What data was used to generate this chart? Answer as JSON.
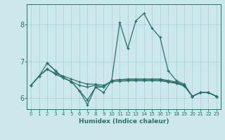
{
  "xlabel": "Humidex (Indice chaleur)",
  "xlim": [
    -0.5,
    23.5
  ],
  "ylim": [
    5.7,
    8.55
  ],
  "yticks": [
    6,
    7,
    8
  ],
  "xticks": [
    0,
    1,
    2,
    3,
    4,
    5,
    6,
    7,
    8,
    9,
    10,
    11,
    12,
    13,
    14,
    15,
    16,
    17,
    18,
    19,
    20,
    21,
    22,
    23
  ],
  "bg_color": "#cce8ec",
  "grid_color": "#aacdd4",
  "line_color": "#2a7068",
  "lines": [
    {
      "x": [
        0,
        1,
        2,
        3,
        4,
        5,
        6,
        7,
        8,
        9,
        10,
        11,
        12,
        13,
        14,
        15,
        16,
        17,
        18,
        19,
        20,
        21,
        22,
        23
      ],
      "y": [
        6.35,
        6.6,
        6.95,
        6.75,
        6.55,
        6.45,
        6.2,
        5.82,
        6.3,
        6.15,
        6.48,
        8.05,
        7.35,
        8.1,
        8.3,
        7.9,
        7.65,
        6.75,
        6.48,
        6.38,
        6.05,
        6.15,
        6.15,
        6.05
      ]
    },
    {
      "x": [
        0,
        1,
        2,
        3,
        4,
        5,
        6,
        7,
        8,
        9,
        10,
        11,
        12,
        13,
        14,
        15,
        16,
        17,
        18,
        19,
        20,
        21,
        22,
        23
      ],
      "y": [
        6.35,
        6.6,
        6.8,
        6.65,
        6.55,
        6.45,
        6.35,
        6.3,
        6.35,
        6.3,
        6.48,
        6.5,
        6.5,
        6.5,
        6.5,
        6.5,
        6.5,
        6.45,
        6.42,
        6.35,
        6.05,
        6.15,
        6.15,
        6.05
      ]
    },
    {
      "x": [
        0,
        1,
        2,
        3,
        4,
        5,
        6,
        7,
        8,
        9,
        10,
        11,
        12,
        13,
        14,
        15,
        16,
        17,
        18,
        19,
        20,
        21,
        22,
        23
      ],
      "y": [
        6.35,
        6.6,
        6.78,
        6.68,
        6.6,
        6.52,
        6.44,
        6.38,
        6.38,
        6.35,
        6.45,
        6.46,
        6.47,
        6.47,
        6.47,
        6.47,
        6.47,
        6.44,
        6.4,
        6.33,
        6.05,
        6.15,
        6.15,
        6.05
      ]
    },
    {
      "x": [
        2,
        3,
        4,
        5,
        6,
        7,
        8,
        9,
        10,
        11,
        12,
        13,
        14,
        15,
        16,
        17,
        18,
        19,
        20,
        21,
        22,
        23
      ],
      "y": [
        6.95,
        6.75,
        6.55,
        6.45,
        6.2,
        5.95,
        6.3,
        6.3,
        6.48,
        6.5,
        6.52,
        6.52,
        6.52,
        6.52,
        6.52,
        6.48,
        6.44,
        6.35,
        6.05,
        6.15,
        6.15,
        6.05
      ]
    }
  ]
}
